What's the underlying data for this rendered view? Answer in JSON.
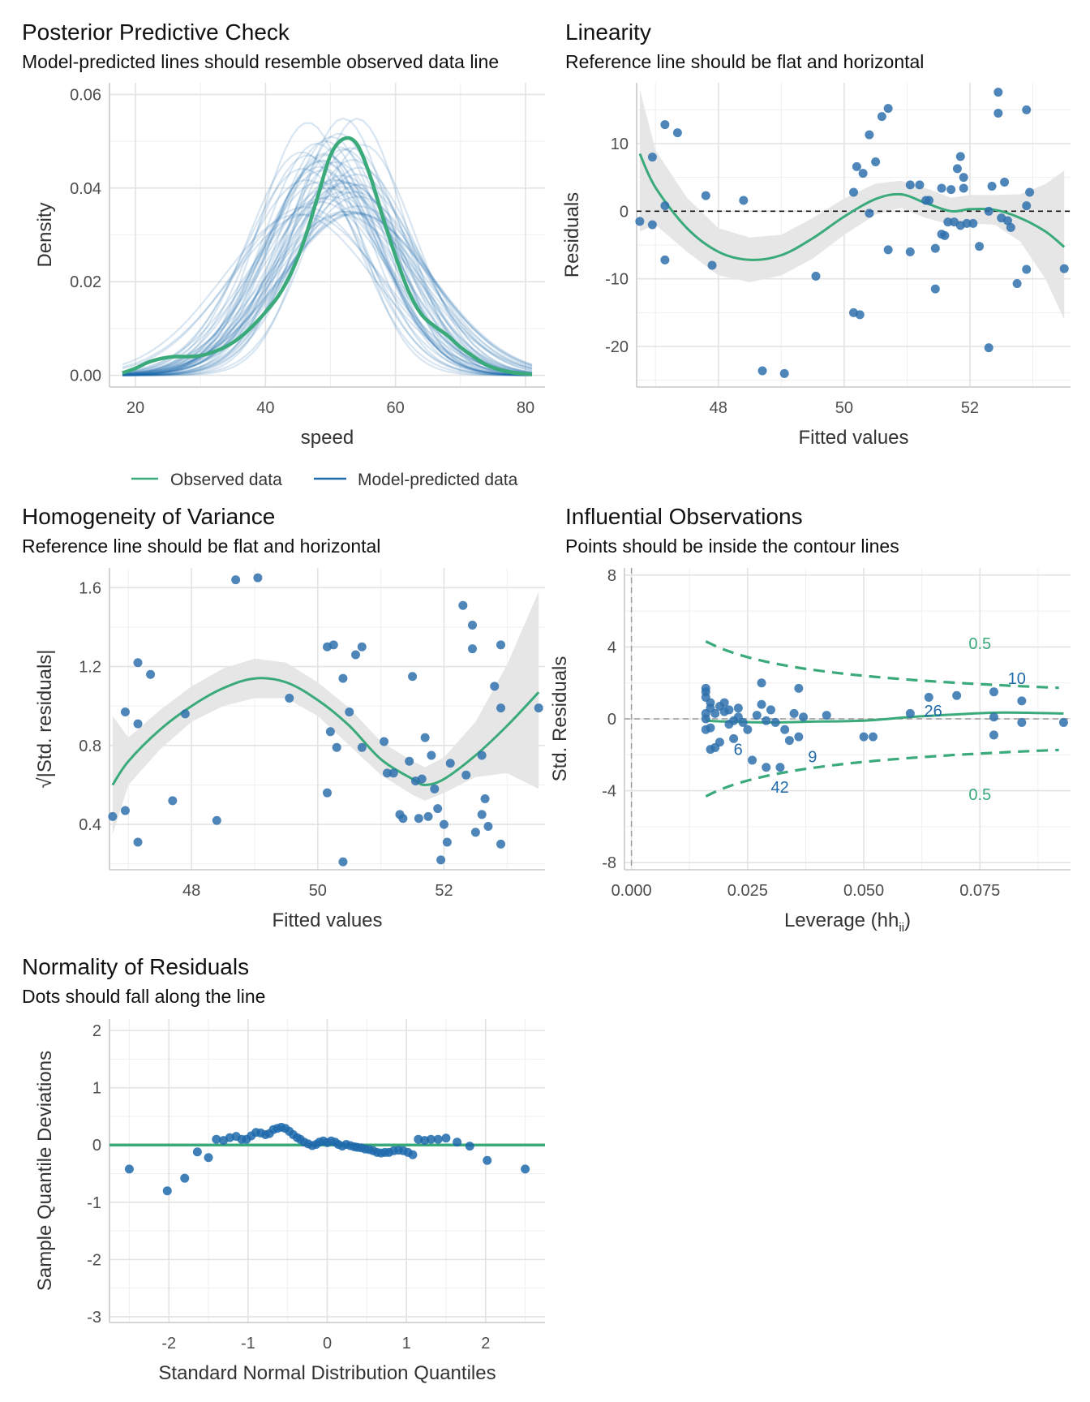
{
  "colors": {
    "observed": "#3aaa7a",
    "predicted": "#1f6aab",
    "points": "#2f71ad",
    "ribbon": "#e5e5e5",
    "text_green": "#3aaa7a",
    "text_blue": "#1f6aab"
  },
  "panels": {
    "ppc": {
      "title": "Posterior Predictive Check",
      "subtitle": "Model-predicted lines should resemble observed data line"
    },
    "lin": {
      "title": "Linearity",
      "subtitle": "Reference line should be flat and horizontal"
    },
    "hom": {
      "title": "Homogeneity of Variance",
      "subtitle": "Reference line should be flat and horizontal"
    },
    "inf": {
      "title": "Influential Observations",
      "subtitle": "Points should be inside the contour lines"
    },
    "qq": {
      "title": "Normality of Residuals",
      "subtitle": "Dots should fall along the line"
    }
  },
  "chart_data": [
    {
      "id": "ppc",
      "type": "line",
      "xlabel": "speed",
      "ylabel": "Density",
      "xlim": [
        16,
        83
      ],
      "ylim": [
        -0.0025,
        0.0625
      ],
      "xticks": [
        "20",
        "40",
        "60",
        "80"
      ],
      "yticks": [
        "0.00",
        "0.02",
        "0.04",
        "0.06"
      ],
      "legend": [
        "Observed data",
        "Model-predicted data"
      ],
      "legend_position": "bottom",
      "series": [
        {
          "name": "Observed data",
          "x": [
            18,
            20,
            22,
            24,
            26,
            28,
            30,
            32,
            34,
            36,
            38,
            40,
            42,
            44,
            46,
            48,
            50,
            52,
            54,
            56,
            58,
            60,
            62,
            64,
            66,
            68,
            70,
            72,
            74,
            76,
            78,
            80,
            81
          ],
          "y": [
            0.0005,
            0.0015,
            0.0028,
            0.0036,
            0.004,
            0.004,
            0.0042,
            0.005,
            0.0062,
            0.008,
            0.0105,
            0.0135,
            0.017,
            0.022,
            0.029,
            0.038,
            0.047,
            0.0505,
            0.0495,
            0.043,
            0.034,
            0.0255,
            0.018,
            0.013,
            0.0105,
            0.0085,
            0.006,
            0.004,
            0.0022,
            0.0012,
            0.0006,
            0.0003,
            0.0002
          ]
        }
      ],
      "predicted_draws": {
        "count": 50,
        "centers": [
          45,
          55
        ],
        "sd_range": [
          7,
          12
        ]
      }
    },
    {
      "id": "lin",
      "type": "scatter",
      "xlabel": "Fitted values",
      "ylabel": "Residuals",
      "xlim": [
        46.7,
        53.6
      ],
      "ylim": [
        -26,
        19
      ],
      "xticks": [
        "48",
        "50",
        "52"
      ],
      "yticks": [
        "-20",
        "-10",
        "0",
        "10"
      ],
      "points": [
        [
          46.75,
          -1.5
        ],
        [
          46.95,
          8
        ],
        [
          46.95,
          -2
        ],
        [
          47.15,
          12.8
        ],
        [
          47.15,
          -7.2
        ],
        [
          47.15,
          0.8
        ],
        [
          47.35,
          11.6
        ],
        [
          47.8,
          2.3
        ],
        [
          47.9,
          -8
        ],
        [
          48.4,
          1.6
        ],
        [
          48.7,
          -23.6
        ],
        [
          49.05,
          -24
        ],
        [
          49.55,
          -9.6
        ],
        [
          50.15,
          2.8
        ],
        [
          50.15,
          -15
        ],
        [
          50.25,
          -15.3
        ],
        [
          50.2,
          6.6
        ],
        [
          50.3,
          5.6
        ],
        [
          50.4,
          11.3
        ],
        [
          50.4,
          -0.3
        ],
        [
          50.5,
          7.3
        ],
        [
          50.6,
          14
        ],
        [
          50.7,
          15.2
        ],
        [
          50.7,
          -5.7
        ],
        [
          51.05,
          -6
        ],
        [
          51.05,
          3.9
        ],
        [
          51.2,
          3.9
        ],
        [
          51.3,
          1.6
        ],
        [
          51.35,
          1.6
        ],
        [
          51.45,
          -5.5
        ],
        [
          51.45,
          -11.5
        ],
        [
          51.55,
          -3.4
        ],
        [
          51.55,
          3.4
        ],
        [
          51.6,
          -3.6
        ],
        [
          51.65,
          -1.6
        ],
        [
          51.7,
          3.2
        ],
        [
          51.75,
          -1.6
        ],
        [
          51.8,
          6.3
        ],
        [
          51.85,
          8.1
        ],
        [
          51.85,
          -2.1
        ],
        [
          51.9,
          5
        ],
        [
          51.9,
          3.4
        ],
        [
          51.95,
          -1.8
        ],
        [
          52.05,
          -1.8
        ],
        [
          52.15,
          -5.2
        ],
        [
          52.3,
          -20.2
        ],
        [
          52.35,
          3.7
        ],
        [
          52.45,
          17.6
        ],
        [
          52.45,
          14.5
        ],
        [
          52.5,
          -1
        ],
        [
          52.55,
          4.3
        ],
        [
          52.6,
          -1.4
        ],
        [
          52.65,
          -2.4
        ],
        [
          52.75,
          -10.7
        ],
        [
          52.9,
          -8.6
        ],
        [
          52.9,
          0.8
        ],
        [
          52.9,
          15
        ],
        [
          52.95,
          2.8
        ],
        [
          53.5,
          -8.5
        ],
        [
          52.3,
          0
        ]
      ],
      "smooth": {
        "x": [
          46.75,
          47.0,
          47.5,
          48.0,
          48.5,
          49.0,
          49.5,
          50.0,
          50.5,
          50.9,
          51.3,
          51.7,
          52.0,
          52.4,
          52.8,
          53.2,
          53.5
        ],
        "y": [
          8.5,
          3.5,
          -2.5,
          -6.0,
          -7.2,
          -6.5,
          -4.0,
          -0.8,
          1.8,
          2.5,
          1.2,
          0.0,
          0.3,
          0.2,
          -1.0,
          -3.0,
          -5.3
        ],
        "lower": [
          -3,
          -2,
          -6,
          -9.5,
          -10.5,
          -9.5,
          -7,
          -3.5,
          -0.5,
          0.5,
          -1,
          -2,
          -1.8,
          -2,
          -4.5,
          -10,
          -16
        ],
        "upper": [
          18,
          9,
          2,
          -2.5,
          -3.9,
          -3.5,
          -1,
          1.9,
          4.1,
          4.5,
          3.4,
          2,
          2.4,
          2.4,
          2.5,
          4,
          6
        ]
      },
      "reference_line": 0
    },
    {
      "id": "hom",
      "type": "scatter",
      "xlabel": "Fitted values",
      "ylabel": "√|Std. residuals|",
      "xlim": [
        46.7,
        53.6
      ],
      "ylim": [
        0.17,
        1.7
      ],
      "xticks": [
        "48",
        "50",
        "52"
      ],
      "yticks": [
        "0.4",
        "0.8",
        "1.2",
        "1.6"
      ],
      "points": [
        [
          46.75,
          0.44
        ],
        [
          46.95,
          0.97
        ],
        [
          46.95,
          0.47
        ],
        [
          47.15,
          1.22
        ],
        [
          47.15,
          0.31
        ],
        [
          47.15,
          0.91
        ],
        [
          47.35,
          1.16
        ],
        [
          47.7,
          0.52
        ],
        [
          47.9,
          0.96
        ],
        [
          48.4,
          0.42
        ],
        [
          48.7,
          1.64
        ],
        [
          49.05,
          1.65
        ],
        [
          49.55,
          1.04
        ],
        [
          50.15,
          1.3
        ],
        [
          50.15,
          0.56
        ],
        [
          50.25,
          1.31
        ],
        [
          50.2,
          0.87
        ],
        [
          50.3,
          0.79
        ],
        [
          50.4,
          1.14
        ],
        [
          50.4,
          0.21
        ],
        [
          50.5,
          0.97
        ],
        [
          50.6,
          1.26
        ],
        [
          50.7,
          1.3
        ],
        [
          50.7,
          0.79
        ],
        [
          51.05,
          0.82
        ],
        [
          51.1,
          0.66
        ],
        [
          51.2,
          0.66
        ],
        [
          51.3,
          0.45
        ],
        [
          51.35,
          0.43
        ],
        [
          51.45,
          0.72
        ],
        [
          51.5,
          1.15
        ],
        [
          51.55,
          0.62
        ],
        [
          51.6,
          0.43
        ],
        [
          51.65,
          0.63
        ],
        [
          51.7,
          0.84
        ],
        [
          51.75,
          0.44
        ],
        [
          51.8,
          0.75
        ],
        [
          51.85,
          0.58
        ],
        [
          51.9,
          0.48
        ],
        [
          51.95,
          0.22
        ],
        [
          52.0,
          0.4
        ],
        [
          52.05,
          0.31
        ],
        [
          52.1,
          0.71
        ],
        [
          52.3,
          1.51
        ],
        [
          52.35,
          0.65
        ],
        [
          52.45,
          1.41
        ],
        [
          52.45,
          1.29
        ],
        [
          52.5,
          0.36
        ],
        [
          52.6,
          0.75
        ],
        [
          52.6,
          0.45
        ],
        [
          52.65,
          0.53
        ],
        [
          52.7,
          0.39
        ],
        [
          52.8,
          1.1
        ],
        [
          52.9,
          0.99
        ],
        [
          52.9,
          1.31
        ],
        [
          52.9,
          0.3
        ],
        [
          53.5,
          0.99
        ]
      ],
      "smooth": {
        "x": [
          46.75,
          47.0,
          47.5,
          48.0,
          48.5,
          49.0,
          49.5,
          50.0,
          50.5,
          51.0,
          51.5,
          51.7,
          52.0,
          52.5,
          53.0,
          53.5
        ],
        "y": [
          0.6,
          0.72,
          0.88,
          1.0,
          1.09,
          1.14,
          1.12,
          1.03,
          0.9,
          0.73,
          0.63,
          0.6,
          0.63,
          0.75,
          0.9,
          1.07
        ],
        "lower": [
          0.35,
          0.6,
          0.78,
          0.92,
          1.0,
          1.04,
          1.04,
          0.95,
          0.8,
          0.65,
          0.55,
          0.52,
          0.56,
          0.64,
          0.66,
          0.58
        ],
        "upper": [
          0.95,
          0.84,
          0.98,
          1.1,
          1.19,
          1.24,
          1.22,
          1.12,
          0.99,
          0.82,
          0.72,
          0.69,
          0.74,
          0.92,
          1.21,
          1.58
        ]
      }
    },
    {
      "id": "inf",
      "type": "scatter",
      "xlabel": "Leverage (hii)",
      "ylabel": "Std. Residuals",
      "xlim": [
        -0.0015,
        0.0945
      ],
      "ylim": [
        -8.4,
        8.4
      ],
      "xticks": [
        "0.000",
        "0.025",
        "0.050",
        "0.075"
      ],
      "yticks": [
        "-8",
        "-4",
        "0",
        "4",
        "8"
      ],
      "points": [
        [
          0.016,
          1.7
        ],
        [
          0.016,
          1.5
        ],
        [
          0.016,
          1.2
        ],
        [
          0.017,
          0.9
        ],
        [
          0.017,
          0.6
        ],
        [
          0.016,
          0.3
        ],
        [
          0.016,
          0
        ],
        [
          0.016,
          -0.6
        ],
        [
          0.017,
          -1.7
        ],
        [
          0.018,
          -1.6
        ],
        [
          0.017,
          -0.5
        ],
        [
          0.018,
          0.3
        ],
        [
          0.019,
          -1.3
        ],
        [
          0.019,
          0.7
        ],
        [
          0.02,
          0.9
        ],
        [
          0.02,
          0.4
        ],
        [
          0.021,
          0.5
        ],
        [
          0.021,
          -0.3
        ],
        [
          0.022,
          -1.1
        ],
        [
          0.022,
          -0.1
        ],
        [
          0.023,
          0.6
        ],
        [
          0.023,
          0.1
        ],
        [
          0.024,
          -0.2
        ],
        [
          0.025,
          -0.6
        ],
        [
          0.026,
          -2.3
        ],
        [
          0.027,
          0.2
        ],
        [
          0.028,
          0.8
        ],
        [
          0.028,
          2.0
        ],
        [
          0.029,
          -2.7
        ],
        [
          0.029,
          -0.1
        ],
        [
          0.03,
          0.5
        ],
        [
          0.031,
          -0.2
        ],
        [
          0.032,
          -2.7
        ],
        [
          0.033,
          -0.6
        ],
        [
          0.034,
          -1.2
        ],
        [
          0.035,
          0.3
        ],
        [
          0.036,
          1.7
        ],
        [
          0.036,
          -1.0
        ],
        [
          0.037,
          0.1
        ],
        [
          0.042,
          0.2
        ],
        [
          0.05,
          -1.0
        ],
        [
          0.052,
          -1.0
        ],
        [
          0.06,
          0.3
        ],
        [
          0.064,
          1.2
        ],
        [
          0.07,
          1.3
        ],
        [
          0.078,
          1.5
        ],
        [
          0.078,
          0.1
        ],
        [
          0.078,
          -0.9
        ],
        [
          0.084,
          1.0
        ],
        [
          0.084,
          -0.2
        ],
        [
          0.093,
          -0.2
        ]
      ],
      "labels": [
        {
          "text": "6",
          "x": 0.022,
          "y": -1.7
        },
        {
          "text": "9",
          "x": 0.038,
          "y": -2.1
        },
        {
          "text": "42",
          "x": 0.03,
          "y": -3.8
        },
        {
          "text": "26",
          "x": 0.063,
          "y": 0.45
        },
        {
          "text": "10",
          "x": 0.081,
          "y": 2.25
        }
      ],
      "contour_label": "0.5",
      "smooth": {
        "x": [
          0.016,
          0.02,
          0.03,
          0.04,
          0.05,
          0.06,
          0.07,
          0.08,
          0.093
        ],
        "y": [
          -0.1,
          -0.15,
          -0.2,
          -0.15,
          -0.1,
          0.1,
          0.25,
          0.35,
          0.3
        ]
      }
    },
    {
      "id": "qq",
      "type": "scatter",
      "xlabel": "Standard Normal Distribution Quantiles",
      "ylabel": "Sample Quantile Deviations",
      "xlim": [
        -2.75,
        2.75
      ],
      "ylim": [
        -3.1,
        2.2
      ],
      "xticks": [
        "-2",
        "-1",
        "0",
        "1",
        "2"
      ],
      "yticks": [
        "-3",
        "-2",
        "-1",
        "0",
        "1",
        "2"
      ],
      "points": [
        [
          -2.5,
          -0.42
        ],
        [
          -2.02,
          -0.8
        ],
        [
          -1.8,
          -0.58
        ],
        [
          -1.64,
          -0.12
        ],
        [
          -1.5,
          -0.22
        ],
        [
          -1.4,
          0.1
        ],
        [
          -1.31,
          0.08
        ],
        [
          -1.23,
          0.13
        ],
        [
          -1.15,
          0.15
        ],
        [
          -1.08,
          0.1
        ],
        [
          -1.02,
          0.1
        ],
        [
          -0.96,
          0.16
        ],
        [
          -0.9,
          0.22
        ],
        [
          -0.84,
          0.21
        ],
        [
          -0.78,
          0.18
        ],
        [
          -0.73,
          0.2
        ],
        [
          -0.68,
          0.27
        ],
        [
          -0.63,
          0.29
        ],
        [
          -0.58,
          0.31
        ],
        [
          -0.53,
          0.29
        ],
        [
          -0.48,
          0.24
        ],
        [
          -0.43,
          0.18
        ],
        [
          -0.38,
          0.13
        ],
        [
          -0.34,
          0.1
        ],
        [
          -0.29,
          0.05
        ],
        [
          -0.24,
          0.02
        ],
        [
          -0.19,
          -0.01
        ],
        [
          -0.14,
          0.01
        ],
        [
          -0.1,
          0.05
        ],
        [
          -0.05,
          0.07
        ],
        [
          0.0,
          0.04
        ],
        [
          0.05,
          0.07
        ],
        [
          0.1,
          0.05
        ],
        [
          0.14,
          0.01
        ],
        [
          0.19,
          -0.02
        ],
        [
          0.24,
          0.01
        ],
        [
          0.29,
          -0.01
        ],
        [
          0.34,
          -0.03
        ],
        [
          0.38,
          -0.04
        ],
        [
          0.43,
          -0.05
        ],
        [
          0.48,
          -0.07
        ],
        [
          0.53,
          -0.08
        ],
        [
          0.58,
          -0.1
        ],
        [
          0.63,
          -0.13
        ],
        [
          0.68,
          -0.14
        ],
        [
          0.73,
          -0.13
        ],
        [
          0.78,
          -0.13
        ],
        [
          0.84,
          -0.1
        ],
        [
          0.9,
          -0.09
        ],
        [
          0.96,
          -0.1
        ],
        [
          1.02,
          -0.13
        ],
        [
          1.08,
          -0.17
        ],
        [
          1.15,
          0.1
        ],
        [
          1.23,
          0.08
        ],
        [
          1.31,
          0.1
        ],
        [
          1.4,
          0.1
        ],
        [
          1.5,
          0.12
        ],
        [
          1.64,
          0.05
        ],
        [
          1.8,
          -0.02
        ],
        [
          2.02,
          -0.27
        ],
        [
          2.5,
          -0.42
        ]
      ],
      "reference_line": 0
    }
  ]
}
